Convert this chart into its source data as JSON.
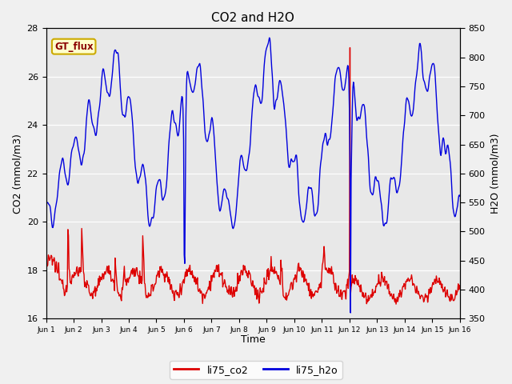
{
  "title": "CO2 and H2O",
  "xlabel": "Time",
  "ylabel_left": "CO2 (mmol/m3)",
  "ylabel_right": "H2O (mmol/m3)",
  "ylim_left": [
    16,
    28
  ],
  "ylim_right": [
    350,
    850
  ],
  "yticks_left": [
    16,
    18,
    20,
    22,
    24,
    26,
    28
  ],
  "yticks_right": [
    350,
    400,
    450,
    500,
    550,
    600,
    650,
    700,
    750,
    800,
    850
  ],
  "xtick_labels": [
    "Jun 1",
    "Jun 2",
    "Jun 3",
    "Jun 4",
    "Jun 5",
    "Jun 6",
    "Jun 7",
    "Jun 8",
    "Jun 9",
    "Jun 10",
    "Jun 11",
    "Jun 12",
    "Jun 13",
    "Jun 14",
    "Jun 15",
    "Jun 16"
  ],
  "fig_bg": "#f0f0f0",
  "plot_bg": "#e8e8e8",
  "legend_label_co2": "li75_co2",
  "legend_label_h2o": "li75_h2o",
  "annotation_text": "GT_flux",
  "annotation_bg": "#ffffcc",
  "annotation_border": "#ccaa00",
  "co2_color": "#dd0000",
  "h2o_color": "#0000dd",
  "line_width": 1.0,
  "grid_color": "#ffffff",
  "title_fontsize": 11,
  "axis_fontsize": 9,
  "tick_fontsize": 8
}
